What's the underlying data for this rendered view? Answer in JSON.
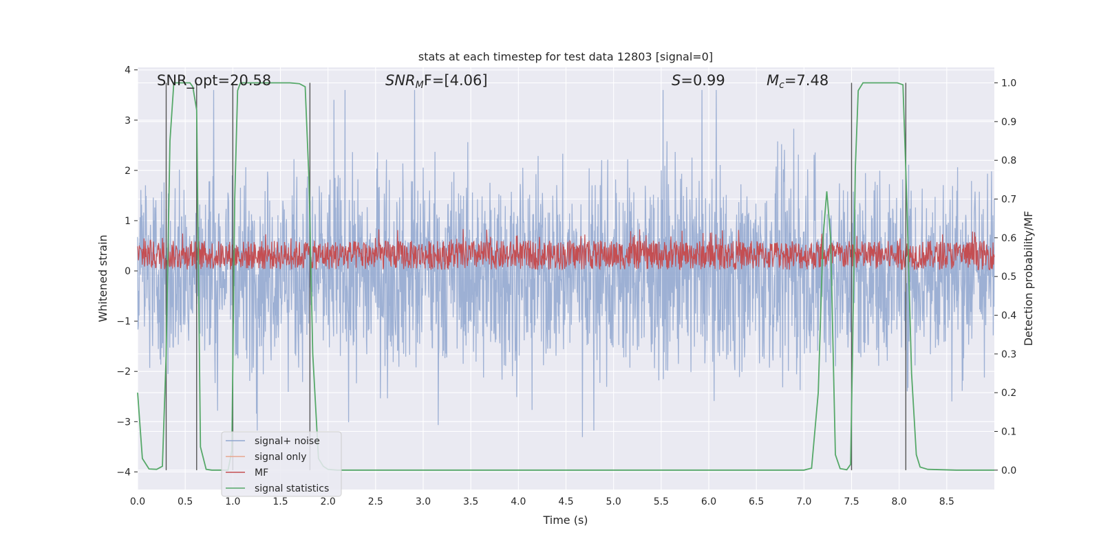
{
  "chart_data": {
    "type": "line",
    "title": "stats at each timestep for test data 12803 [signal=0]",
    "xlabel": "Time (s)",
    "ylabel": "Whitened strain",
    "y2label": "Detection probability/MF",
    "xlim": [
      0.0,
      9.0
    ],
    "ylim": [
      -4.35,
      4.05
    ],
    "y2lim": [
      -0.05,
      1.04
    ],
    "xticks": [
      "0.0",
      "0.5",
      "1.0",
      "1.5",
      "2.0",
      "2.5",
      "3.0",
      "3.5",
      "4.0",
      "4.5",
      "5.0",
      "5.5",
      "6.0",
      "6.5",
      "7.0",
      "7.5",
      "8.0",
      "8.5"
    ],
    "yticks": [
      "4",
      "3",
      "2",
      "1",
      "0",
      "−1",
      "−2",
      "−3",
      "−4"
    ],
    "y2ticks": [
      "1.0",
      "0.9",
      "0.8",
      "0.7",
      "0.6",
      "0.5",
      "0.4",
      "0.3",
      "0.2",
      "0.1",
      "0.0"
    ],
    "annotations": {
      "snr_opt": "SNR_opt=20.58",
      "snr_mf_sym": "SNR",
      "snr_mf_sub": "M",
      "snr_mf_rest": "F=[4.06]",
      "s_sym": "S",
      "s_rest": "=0.99",
      "mc_sym": "M",
      "mc_sub": "c",
      "mc_rest": "=7.48"
    },
    "legend": {
      "placement": "lower-left",
      "entries": [
        "signal+ noise",
        "signal only",
        "MF",
        "signal statistics"
      ]
    },
    "vertical_markers_s": [
      0.3,
      0.62,
      1.0,
      1.81,
      7.5,
      8.07
    ],
    "series": [
      {
        "name": "signal statistics",
        "axis": "right",
        "x": [
          0.0,
          0.05,
          0.12,
          0.2,
          0.26,
          0.3,
          0.34,
          0.38,
          0.45,
          0.55,
          0.58,
          0.62,
          0.66,
          0.72,
          0.78,
          0.85,
          0.95,
          0.99,
          1.02,
          1.05,
          1.08,
          1.15,
          1.3,
          1.6,
          1.7,
          1.76,
          1.8,
          1.84,
          1.9,
          1.95,
          2.0,
          2.1,
          3.0,
          4.0,
          5.0,
          6.0,
          7.0,
          7.08,
          7.15,
          7.2,
          7.24,
          7.28,
          7.33,
          7.38,
          7.45,
          7.49,
          7.51,
          7.54,
          7.57,
          7.62,
          7.8,
          7.98,
          8.04,
          8.08,
          8.13,
          8.18,
          8.22,
          8.3,
          8.6,
          9.0
        ],
        "values": [
          0.2,
          0.03,
          0.003,
          0.002,
          0.01,
          0.3,
          0.85,
          1.0,
          1.0,
          1.0,
          0.99,
          0.93,
          0.06,
          0.002,
          0.0,
          0.0,
          0.0,
          0.05,
          0.7,
          0.98,
          1.0,
          1.0,
          1.0,
          1.0,
          0.998,
          0.99,
          0.75,
          0.3,
          0.03,
          0.01,
          0.002,
          0.0,
          0.0,
          0.0,
          0.0,
          0.0,
          0.0,
          0.005,
          0.2,
          0.6,
          0.72,
          0.6,
          0.04,
          0.004,
          0.001,
          0.015,
          0.3,
          0.78,
          0.98,
          1.0,
          1.0,
          1.0,
          0.995,
          0.7,
          0.25,
          0.04,
          0.008,
          0.002,
          0.0,
          0.0
        ]
      }
    ]
  }
}
